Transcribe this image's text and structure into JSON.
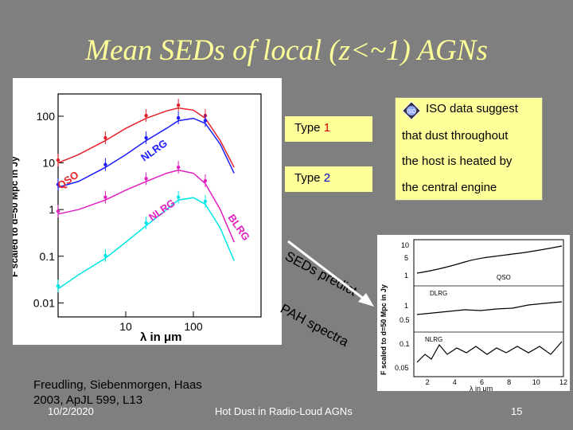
{
  "slide": {
    "title": "Mean SEDs of local (z<~1) AGNs",
    "footer_date": "10/2/2020",
    "footer_center": "Hot Dust in Radio-Loud AGNs",
    "page_number": "15"
  },
  "legend": {
    "type1_prefix": "Type ",
    "type1_num": "1",
    "type2_prefix": "Type ",
    "type2_num": "2"
  },
  "note": {
    "logo_text": "ISO",
    "lines": [
      "ISO data suggest",
      "that dust throughout",
      "the host is heated by",
      "the central engine"
    ]
  },
  "annotations": {
    "seds_predict": "SEDs predict",
    "pah_spectra": "PAH spectra"
  },
  "citation": {
    "line1": "Freudling, Siebenmorgen, Haas",
    "line2": "2003, ApJL 599, L13"
  },
  "left_figure": {
    "ylabel": "F scaled to d=50 Mpc in Jy",
    "xlabel": "λ in μm",
    "yticks": [
      "100",
      "10",
      "1",
      "0.1",
      "0.01"
    ],
    "xticks": [
      "10",
      "100"
    ],
    "curve_labels": [
      "QSO",
      "NLRG",
      "NLRG",
      "BLRG"
    ]
  },
  "right_figure": {
    "ylabel": "F scaled to d=50 Mpc in Jy",
    "xlabel": "λ in μm",
    "xticks": [
      "2",
      "4",
      "6",
      "8",
      "10",
      "12"
    ],
    "panels": [
      {
        "label": "QSO",
        "yticks": [
          "10",
          "5",
          "1"
        ]
      },
      {
        "label": "DLRG",
        "yticks": [
          "1",
          "0.5"
        ]
      },
      {
        "label": "NLRG",
        "yticks": [
          "0.1",
          "0.05"
        ]
      }
    ]
  },
  "chart_data": [
    {
      "type": "line",
      "title": "",
      "xlabel": "λ in μm",
      "ylabel": "F scaled to d=50 Mpc in Jy",
      "xscale": "log",
      "yscale": "log",
      "xlim": [
        1,
        1000
      ],
      "ylim": [
        0.005,
        300
      ],
      "series": [
        {
          "name": "QSO",
          "color": "#e8202a",
          "x": [
            1,
            2,
            5,
            10,
            20,
            40,
            60,
            100,
            150,
            250,
            400
          ],
          "y": [
            10,
            15,
            30,
            55,
            90,
            130,
            150,
            135,
            90,
            30,
            8
          ]
        },
        {
          "name": "NLRG",
          "color": "#1c1cff",
          "x": [
            1,
            2,
            5,
            10,
            20,
            40,
            60,
            100,
            150,
            250,
            400
          ],
          "y": [
            3,
            4,
            8,
            15,
            30,
            55,
            80,
            90,
            70,
            25,
            6
          ]
        },
        {
          "name": "NLRG",
          "color": "#e020c0",
          "x": [
            1,
            2,
            5,
            10,
            20,
            40,
            60,
            100,
            150,
            250,
            400
          ],
          "y": [
            0.8,
            1.0,
            1.6,
            2.6,
            4,
            6,
            7,
            6,
            3.6,
            1.0,
            0.2
          ]
        },
        {
          "name": "BLRG",
          "color": "#00e6e6",
          "x": [
            1,
            2,
            5,
            10,
            20,
            40,
            60,
            100,
            150,
            250,
            400
          ],
          "y": [
            0.02,
            0.04,
            0.09,
            0.2,
            0.45,
            1.0,
            1.6,
            1.8,
            1.3,
            0.4,
            0.08
          ]
        }
      ]
    }
  ]
}
